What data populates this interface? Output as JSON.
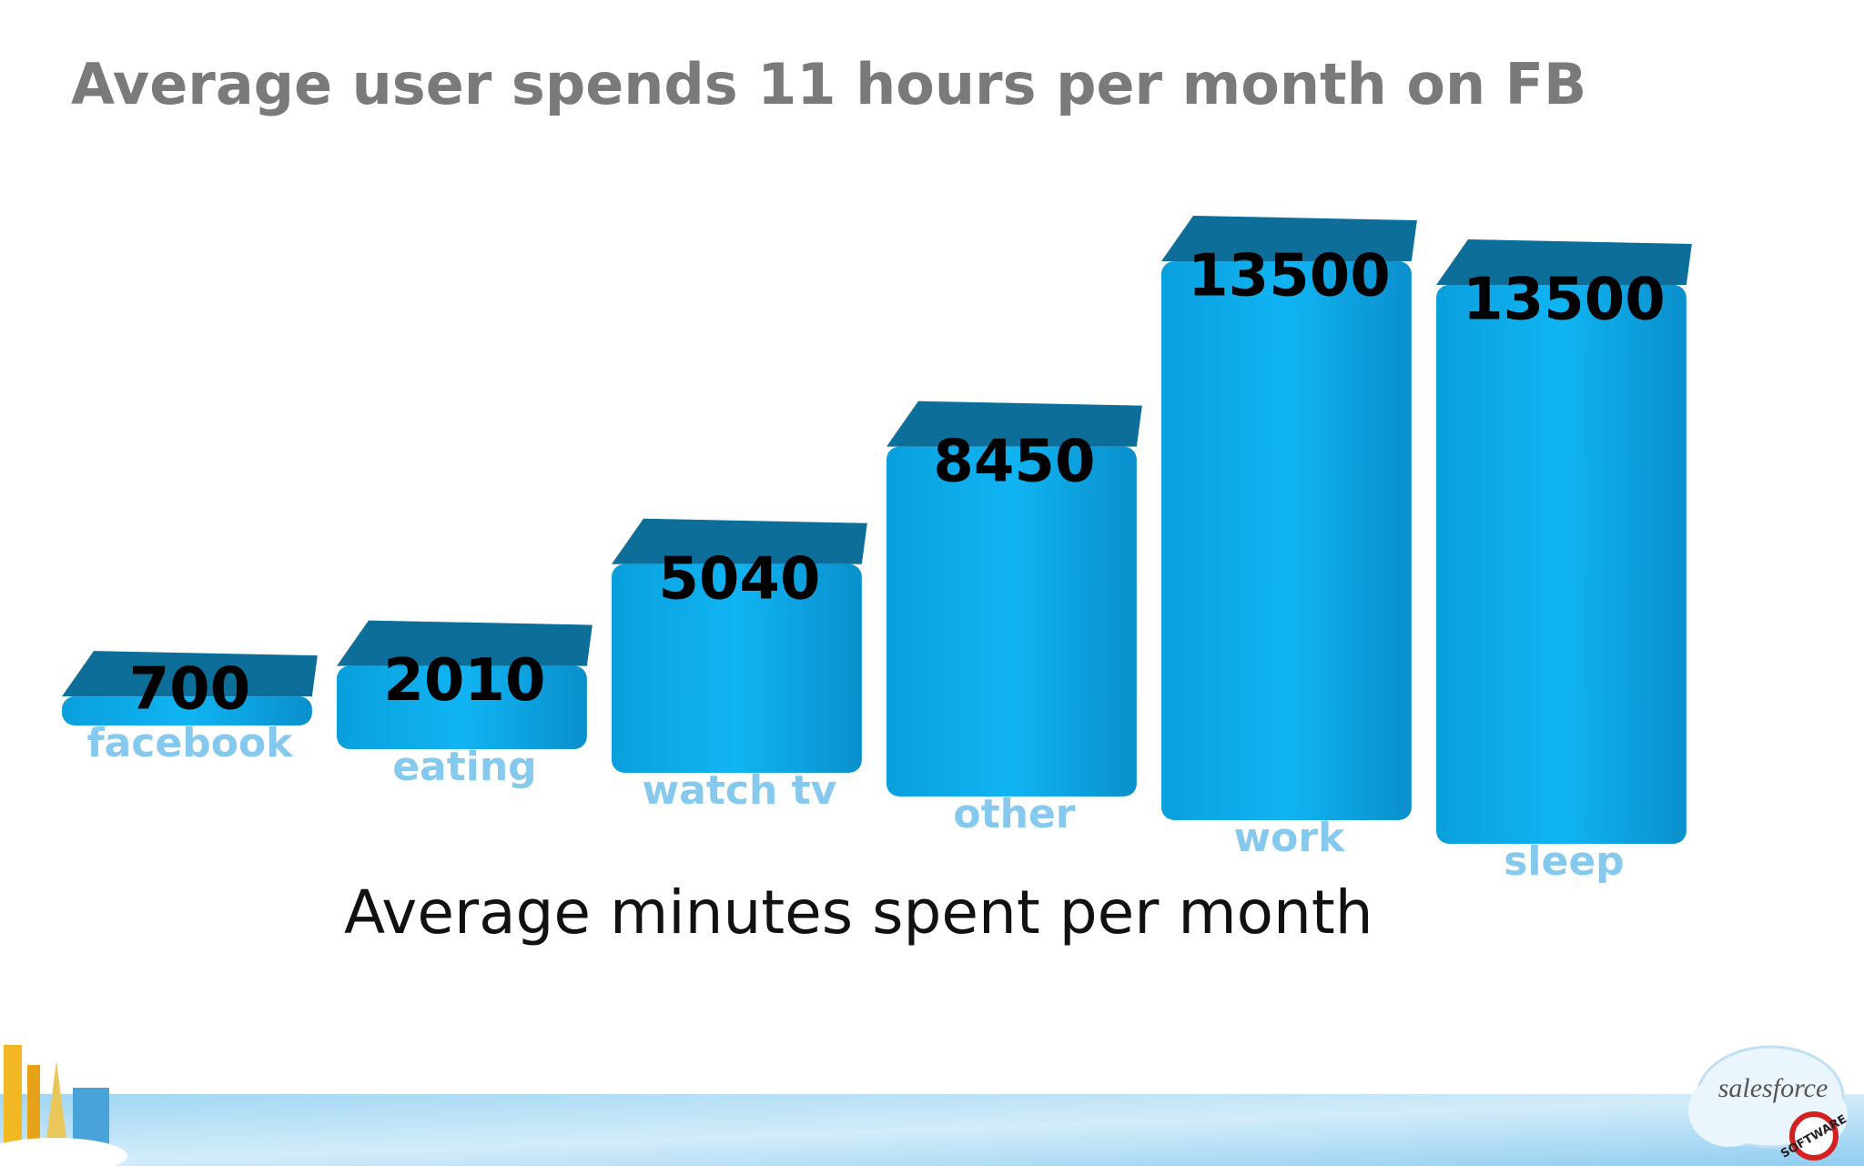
{
  "chart_data": {
    "type": "bar",
    "title": "Average user spends 11 hours per month on FB",
    "subtitle": "Average minutes spent per month",
    "categories": [
      "facebook",
      "eating",
      "watch tv",
      "other",
      "work",
      "sleep"
    ],
    "values": [
      700,
      2010,
      5040,
      8450,
      13500,
      13500
    ],
    "color": "#0aa8e8"
  },
  "footer": {
    "logo": "salesforce",
    "badge": "SOFTWARE"
  }
}
